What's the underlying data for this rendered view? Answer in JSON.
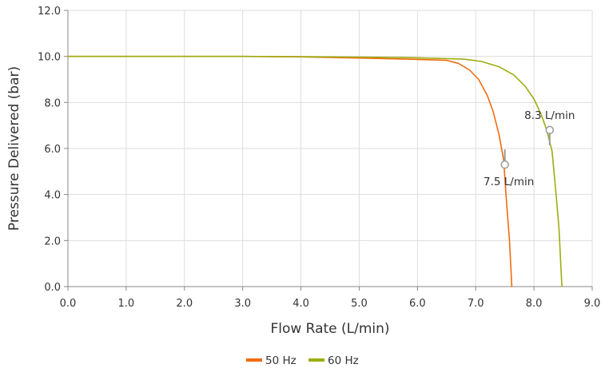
{
  "chart_data": {
    "type": "line",
    "title": "",
    "xlabel": "Flow Rate (L/min)",
    "ylabel": "Pressure Delivered (bar)",
    "xlim": [
      0,
      9
    ],
    "ylim": [
      0,
      12
    ],
    "xticks": [
      0,
      1,
      2,
      3,
      4,
      5,
      6,
      7,
      8,
      9
    ],
    "xtick_labels": [
      "0.0",
      "1.0",
      "2.0",
      "3.0",
      "4.0",
      "5.0",
      "6.0",
      "7.0",
      "8.0",
      "9.0"
    ],
    "yticks": [
      0,
      2,
      4,
      6,
      8,
      10,
      12
    ],
    "ytick_labels": [
      "0.0",
      "2.0",
      "4.0",
      "6.0",
      "8.0",
      "10.0",
      "12.0"
    ],
    "grid": true,
    "legend_position": "bottom-center",
    "series": [
      {
        "name": "50 Hz",
        "color": "#f26b0f",
        "x": [
          0,
          1,
          2,
          3,
          4,
          5,
          6,
          6.5,
          6.7,
          6.9,
          7.05,
          7.2,
          7.3,
          7.4,
          7.48,
          7.52,
          7.58,
          7.62
        ],
        "y": [
          10,
          10,
          10,
          10,
          9.98,
          9.93,
          9.87,
          9.83,
          9.7,
          9.4,
          9.0,
          8.3,
          7.6,
          6.6,
          5.5,
          4.0,
          2.0,
          0
        ]
      },
      {
        "name": "60 Hz",
        "color": "#9fac12",
        "x": [
          0,
          1,
          2,
          3,
          4,
          5,
          6,
          6.8,
          7.1,
          7.4,
          7.65,
          7.85,
          8.0,
          8.12,
          8.22,
          8.31,
          8.38,
          8.43,
          8.46,
          8.48
        ],
        "y": [
          10,
          10,
          10,
          10,
          9.99,
          9.97,
          9.94,
          9.88,
          9.78,
          9.55,
          9.2,
          8.7,
          8.15,
          7.5,
          6.8,
          5.9,
          4.0,
          2.5,
          1.0,
          0
        ]
      }
    ],
    "annotations": [
      {
        "text": "7.5 L/min",
        "x": 7.5,
        "y": 5.3,
        "series": "50 Hz",
        "label_side": "below"
      },
      {
        "text": "8.3 L/min",
        "x": 8.27,
        "y": 6.8,
        "series": "60 Hz",
        "label_side": "above"
      }
    ]
  }
}
